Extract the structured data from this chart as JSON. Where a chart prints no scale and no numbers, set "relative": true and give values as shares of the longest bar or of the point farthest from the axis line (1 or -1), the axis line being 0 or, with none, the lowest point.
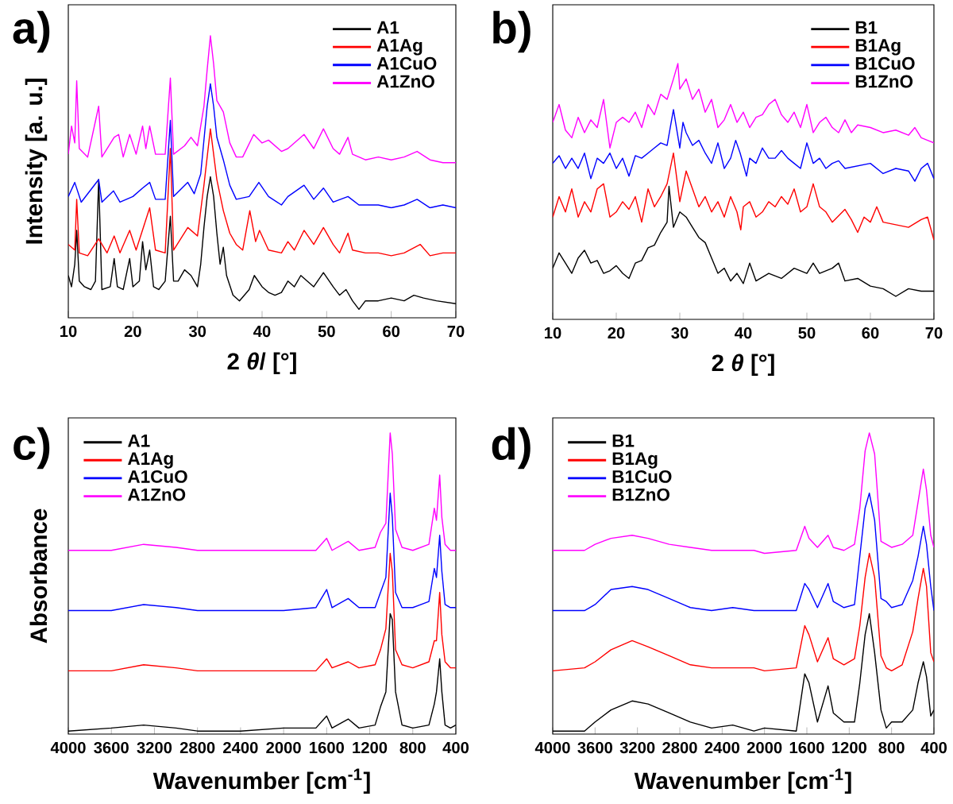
{
  "chart_data": [
    {
      "type": "line",
      "relative": true,
      "title": "a)",
      "xlabel": "2 *θ*/ [°]",
      "ylabel": "Intensity [a. u.]",
      "xlim": [
        10,
        70
      ],
      "xticks": [
        10,
        20,
        30,
        40,
        50,
        60,
        70
      ],
      "legend": "top right",
      "series": [
        {
          "name": "A1",
          "color": "#000000",
          "x": [
            10,
            10.5,
            11,
            11.3,
            11.7,
            12.5,
            13.5,
            14.2,
            14.7,
            15.2,
            16.5,
            17.1,
            17.6,
            18.5,
            19.5,
            20,
            21,
            21.5,
            22,
            22.6,
            23.2,
            24,
            25,
            25.8,
            26.3,
            27,
            28,
            29,
            30,
            30.5,
            31,
            31.5,
            32,
            32.5,
            33,
            33.5,
            34,
            34.5,
            35.5,
            36.5,
            38,
            38.8,
            40,
            41,
            42,
            43,
            44,
            45,
            46,
            47,
            48,
            49.5,
            51,
            52,
            53,
            54,
            55,
            56,
            58,
            60,
            62,
            63.5,
            65,
            67,
            70
          ],
          "values": [
            0.15,
            0.11,
            0.19,
            0.31,
            0.13,
            0.11,
            0.1,
            0.13,
            0.49,
            0.1,
            0.11,
            0.21,
            0.11,
            0.1,
            0.21,
            0.11,
            0.13,
            0.27,
            0.17,
            0.24,
            0.11,
            0.1,
            0.13,
            0.36,
            0.13,
            0.13,
            0.17,
            0.15,
            0.11,
            0.19,
            0.32,
            0.43,
            0.5,
            0.43,
            0.3,
            0.19,
            0.25,
            0.15,
            0.08,
            0.06,
            0.1,
            0.15,
            0.11,
            0.09,
            0.08,
            0.09,
            0.13,
            0.11,
            0.15,
            0.13,
            0.11,
            0.16,
            0.11,
            0.08,
            0.1,
            0.06,
            0.03,
            0.06,
            0.06,
            0.07,
            0.06,
            0.08,
            0.07,
            0.06,
            0.05
          ]
        },
        {
          "name": "A1Ag",
          "color": "#ff0000",
          "x": [
            10,
            11,
            11.3,
            11.7,
            13,
            14.7,
            16,
            17.1,
            18,
            19.5,
            20.5,
            22.6,
            23.5,
            25,
            25.8,
            26.3,
            28.5,
            30,
            31,
            32,
            33,
            34,
            35,
            36,
            37,
            38.1,
            39,
            39.6,
            41,
            43,
            44,
            45,
            46.5,
            48,
            49.5,
            51,
            52,
            53.3,
            54,
            56,
            58,
            60,
            62,
            64.5,
            66,
            68,
            70
          ],
          "values": [
            0.26,
            0.24,
            0.42,
            0.23,
            0.22,
            0.28,
            0.23,
            0.29,
            0.23,
            0.31,
            0.24,
            0.39,
            0.24,
            0.23,
            0.6,
            0.24,
            0.32,
            0.29,
            0.47,
            0.67,
            0.49,
            0.38,
            0.3,
            0.26,
            0.24,
            0.38,
            0.27,
            0.31,
            0.24,
            0.23,
            0.27,
            0.24,
            0.31,
            0.26,
            0.32,
            0.26,
            0.23,
            0.3,
            0.24,
            0.23,
            0.23,
            0.22,
            0.23,
            0.26,
            0.22,
            0.23,
            0.23
          ]
        },
        {
          "name": "A1CuO",
          "color": "#0000ff",
          "x": [
            10,
            11,
            12,
            14.7,
            15.2,
            17,
            18,
            20,
            21.5,
            22.6,
            23.5,
            25,
            25.8,
            26.3,
            28.5,
            29.5,
            30.5,
            31.5,
            32,
            32.5,
            33,
            34,
            35,
            36,
            38,
            39.5,
            41,
            43,
            44,
            46.5,
            48,
            49.5,
            51,
            53.3,
            55,
            58,
            60,
            62,
            64,
            66,
            68,
            70
          ],
          "values": [
            0.43,
            0.48,
            0.41,
            0.49,
            0.41,
            0.45,
            0.41,
            0.43,
            0.46,
            0.48,
            0.42,
            0.42,
            0.7,
            0.43,
            0.48,
            0.44,
            0.51,
            0.75,
            0.83,
            0.75,
            0.64,
            0.56,
            0.47,
            0.42,
            0.43,
            0.48,
            0.43,
            0.4,
            0.43,
            0.47,
            0.42,
            0.46,
            0.41,
            0.43,
            0.4,
            0.4,
            0.39,
            0.4,
            0.42,
            0.39,
            0.4,
            0.39
          ]
        },
        {
          "name": "A1ZnO",
          "color": "#ff00ff",
          "x": [
            10,
            10.5,
            11,
            11.3,
            11.7,
            13,
            14.7,
            15.2,
            17.1,
            17.8,
            18.5,
            19.5,
            20.5,
            21.5,
            22,
            22.6,
            23.5,
            25,
            25.8,
            26.3,
            28,
            29,
            30,
            31,
            31.5,
            32,
            32.5,
            33,
            34,
            35,
            36,
            37,
            38.7,
            40,
            41,
            43,
            44,
            46.5,
            48,
            49.5,
            51,
            52,
            53.3,
            54,
            56,
            58,
            60,
            62,
            64,
            66,
            68,
            70
          ],
          "values": [
            0.58,
            0.68,
            0.62,
            0.84,
            0.6,
            0.57,
            0.75,
            0.57,
            0.64,
            0.65,
            0.57,
            0.65,
            0.58,
            0.68,
            0.6,
            0.68,
            0.58,
            0.58,
            0.85,
            0.58,
            0.61,
            0.64,
            0.61,
            0.75,
            0.88,
            1.0,
            0.9,
            0.77,
            0.73,
            0.62,
            0.57,
            0.57,
            0.65,
            0.62,
            0.63,
            0.59,
            0.6,
            0.65,
            0.6,
            0.67,
            0.6,
            0.58,
            0.64,
            0.58,
            0.56,
            0.57,
            0.56,
            0.57,
            0.59,
            0.56,
            0.55,
            0.55
          ]
        }
      ]
    },
    {
      "type": "line",
      "relative": true,
      "title": "b)",
      "xlabel": "2 *θ* [°]",
      "xlim": [
        10,
        70
      ],
      "xticks": [
        10,
        20,
        30,
        40,
        50,
        60,
        70
      ],
      "legend": "top right",
      "series": [
        {
          "name": "B1",
          "color": "#000000",
          "x": [
            10,
            11,
            12,
            13,
            14,
            15,
            16,
            17,
            18,
            19,
            20,
            21,
            22,
            23,
            24,
            25,
            26,
            27,
            28,
            28.3,
            29,
            30,
            31,
            32,
            33,
            34,
            35,
            36,
            37,
            38,
            39,
            40,
            41,
            42,
            44,
            46,
            48,
            50,
            51,
            52,
            54,
            55,
            56,
            58,
            60,
            62,
            64,
            66,
            68,
            70
          ],
          "values": [
            0.2,
            0.26,
            0.22,
            0.18,
            0.24,
            0.27,
            0.22,
            0.23,
            0.18,
            0.19,
            0.21,
            0.18,
            0.16,
            0.22,
            0.23,
            0.28,
            0.29,
            0.34,
            0.38,
            0.52,
            0.36,
            0.42,
            0.4,
            0.36,
            0.32,
            0.3,
            0.24,
            0.18,
            0.2,
            0.15,
            0.18,
            0.14,
            0.22,
            0.15,
            0.18,
            0.16,
            0.2,
            0.18,
            0.22,
            0.18,
            0.2,
            0.22,
            0.15,
            0.16,
            0.13,
            0.12,
            0.09,
            0.12,
            0.11,
            0.11
          ]
        },
        {
          "name": "B1Ag",
          "color": "#ff0000",
          "x": [
            10,
            11,
            12,
            13,
            14,
            15,
            16,
            17,
            18,
            19,
            20,
            21,
            22,
            23,
            24,
            25,
            26,
            27,
            28,
            29,
            30,
            31,
            32,
            33,
            34,
            35,
            36,
            37,
            38,
            39,
            39.6,
            40,
            41,
            42,
            43,
            44,
            45,
            46,
            47,
            48,
            49,
            50,
            51,
            52,
            53,
            54,
            56,
            57,
            58,
            59,
            60,
            61,
            62,
            64,
            66,
            68,
            69,
            70
          ],
          "values": [
            0.4,
            0.48,
            0.42,
            0.51,
            0.4,
            0.46,
            0.42,
            0.51,
            0.53,
            0.4,
            0.42,
            0.46,
            0.43,
            0.48,
            0.38,
            0.51,
            0.44,
            0.48,
            0.53,
            0.65,
            0.46,
            0.58,
            0.51,
            0.44,
            0.48,
            0.42,
            0.46,
            0.4,
            0.48,
            0.42,
            0.35,
            0.44,
            0.46,
            0.4,
            0.42,
            0.46,
            0.44,
            0.48,
            0.45,
            0.51,
            0.42,
            0.44,
            0.53,
            0.44,
            0.42,
            0.38,
            0.43,
            0.39,
            0.34,
            0.4,
            0.38,
            0.44,
            0.38,
            0.37,
            0.36,
            0.39,
            0.4,
            0.31
          ]
        },
        {
          "name": "B1CuO",
          "color": "#0000ff",
          "x": [
            10,
            11,
            12,
            13,
            14,
            15,
            16,
            17,
            18,
            19,
            20,
            21,
            22,
            23,
            24,
            25,
            26,
            27,
            28,
            29,
            30,
            30.5,
            31,
            32,
            33,
            34,
            35,
            36,
            37,
            38,
            38.8,
            39.5,
            40.5,
            41,
            42,
            43,
            44,
            45,
            46,
            47,
            48,
            49,
            50,
            51,
            52,
            53,
            54,
            55,
            56,
            58,
            60,
            62,
            64,
            66,
            67,
            68,
            69,
            70
          ],
          "values": [
            0.61,
            0.64,
            0.59,
            0.63,
            0.59,
            0.65,
            0.55,
            0.63,
            0.61,
            0.65,
            0.59,
            0.63,
            0.56,
            0.64,
            0.63,
            0.65,
            0.67,
            0.69,
            0.68,
            0.82,
            0.67,
            0.77,
            0.73,
            0.68,
            0.7,
            0.65,
            0.61,
            0.69,
            0.59,
            0.63,
            0.7,
            0.65,
            0.56,
            0.63,
            0.61,
            0.67,
            0.63,
            0.63,
            0.66,
            0.63,
            0.61,
            0.59,
            0.69,
            0.61,
            0.63,
            0.59,
            0.61,
            0.62,
            0.59,
            0.6,
            0.61,
            0.57,
            0.59,
            0.58,
            0.54,
            0.59,
            0.61,
            0.55
          ]
        },
        {
          "name": "B1ZnO",
          "color": "#ff00ff",
          "x": [
            10,
            11,
            12,
            13,
            14,
            15,
            16,
            17,
            18,
            19,
            20,
            21,
            22,
            23,
            24,
            25,
            26,
            27,
            28,
            29,
            29.7,
            30,
            31,
            32,
            33,
            34,
            35,
            36,
            37,
            38,
            39,
            40,
            41,
            42,
            43,
            44,
            45,
            46,
            47,
            48,
            49,
            50,
            51,
            52,
            53,
            54,
            55,
            56,
            57,
            58,
            60,
            62,
            64,
            66,
            67,
            68,
            69,
            70
          ],
          "values": [
            0.77,
            0.84,
            0.74,
            0.71,
            0.79,
            0.73,
            0.78,
            0.75,
            0.86,
            0.67,
            0.77,
            0.79,
            0.77,
            0.81,
            0.75,
            0.84,
            0.8,
            0.88,
            0.86,
            0.94,
            1.0,
            0.9,
            0.94,
            0.86,
            0.9,
            0.81,
            0.86,
            0.75,
            0.78,
            0.84,
            0.77,
            0.81,
            0.75,
            0.79,
            0.8,
            0.84,
            0.86,
            0.8,
            0.77,
            0.81,
            0.75,
            0.84,
            0.73,
            0.77,
            0.79,
            0.75,
            0.73,
            0.78,
            0.73,
            0.76,
            0.75,
            0.73,
            0.74,
            0.72,
            0.75,
            0.71,
            0.7,
            0.69
          ]
        }
      ]
    },
    {
      "type": "line",
      "relative": true,
      "title": "c)",
      "xlabel": "Wavenumber [cm$^{-1}$]",
      "ylabel": "Absorbance",
      "xlim": [
        4000,
        400
      ],
      "xticks": [
        4000,
        3600,
        3200,
        2800,
        2400,
        2000,
        1600,
        1200,
        800,
        400
      ],
      "legend": "top left",
      "series": [
        {
          "name": "A1",
          "color": "#000000",
          "x": [
            4000,
            3600,
            3300,
            3000,
            2800,
            2400,
            2000,
            1700,
            1600,
            1550,
            1400,
            1300,
            1150,
            1100,
            1050,
            1010,
            990,
            960,
            900,
            800,
            650,
            600,
            580,
            550,
            530,
            500,
            450,
            400
          ],
          "values": [
            0.01,
            0.02,
            0.03,
            0.02,
            0.01,
            0.01,
            0.02,
            0.02,
            0.06,
            0.02,
            0.05,
            0.02,
            0.03,
            0.09,
            0.14,
            0.4,
            0.38,
            0.14,
            0.03,
            0.02,
            0.03,
            0.1,
            0.14,
            0.25,
            0.14,
            0.03,
            0.02,
            0.03
          ]
        },
        {
          "name": "A1Ag",
          "color": "#ff0000",
          "x": [
            4000,
            3600,
            3300,
            3000,
            2800,
            2400,
            2000,
            1700,
            1600,
            1550,
            1400,
            1300,
            1150,
            1100,
            1050,
            1010,
            990,
            960,
            900,
            800,
            650,
            600,
            580,
            550,
            530,
            500,
            450,
            400
          ],
          "values": [
            0.21,
            0.21,
            0.23,
            0.22,
            0.21,
            0.21,
            0.21,
            0.21,
            0.25,
            0.22,
            0.24,
            0.22,
            0.23,
            0.28,
            0.35,
            0.6,
            0.54,
            0.28,
            0.23,
            0.22,
            0.24,
            0.31,
            0.31,
            0.47,
            0.33,
            0.24,
            0.22,
            0.22
          ]
        },
        {
          "name": "A1CuO",
          "color": "#0000ff",
          "x": [
            4000,
            3600,
            3300,
            3000,
            2800,
            2400,
            2000,
            1700,
            1600,
            1550,
            1400,
            1300,
            1150,
            1100,
            1050,
            1010,
            990,
            960,
            900,
            800,
            650,
            600,
            580,
            550,
            530,
            500,
            450,
            400
          ],
          "values": [
            0.41,
            0.41,
            0.43,
            0.42,
            0.41,
            0.41,
            0.41,
            0.42,
            0.48,
            0.42,
            0.45,
            0.42,
            0.42,
            0.47,
            0.52,
            0.8,
            0.72,
            0.47,
            0.42,
            0.42,
            0.44,
            0.55,
            0.52,
            0.66,
            0.54,
            0.43,
            0.42,
            0.42
          ]
        },
        {
          "name": "A1ZnO",
          "color": "#ff00ff",
          "x": [
            4000,
            3600,
            3300,
            3000,
            2800,
            2400,
            2000,
            1700,
            1600,
            1550,
            1400,
            1300,
            1150,
            1100,
            1050,
            1010,
            990,
            960,
            900,
            800,
            650,
            600,
            580,
            550,
            530,
            500,
            450,
            400
          ],
          "values": [
            0.61,
            0.61,
            0.63,
            0.62,
            0.61,
            0.61,
            0.61,
            0.61,
            0.65,
            0.61,
            0.64,
            0.61,
            0.62,
            0.67,
            0.7,
            1.0,
            0.93,
            0.68,
            0.62,
            0.61,
            0.63,
            0.75,
            0.71,
            0.86,
            0.72,
            0.63,
            0.61,
            0.61
          ]
        }
      ]
    },
    {
      "type": "line",
      "relative": true,
      "title": "d)",
      "xlabel": "Wavenumber [cm$^{-1}$]",
      "xlim": [
        4000,
        400
      ],
      "xticks": [
        4000,
        3600,
        3200,
        2800,
        2400,
        2000,
        1600,
        1200,
        800,
        400
      ],
      "legend": "top left",
      "series": [
        {
          "name": "B1",
          "color": "#000000",
          "x": [
            4000,
            3700,
            3600,
            3450,
            3250,
            3100,
            2900,
            2700,
            2500,
            2300,
            2100,
            2000,
            1700,
            1620,
            1580,
            1500,
            1400,
            1350,
            1250,
            1150,
            1100,
            1050,
            1010,
            960,
            900,
            850,
            800,
            700,
            600,
            550,
            500,
            470,
            430,
            400
          ],
          "values": [
            0.01,
            0.01,
            0.04,
            0.08,
            0.11,
            0.1,
            0.07,
            0.04,
            0.02,
            0.03,
            0.01,
            0.02,
            0.01,
            0.2,
            0.17,
            0.04,
            0.16,
            0.07,
            0.04,
            0.04,
            0.17,
            0.33,
            0.4,
            0.27,
            0.08,
            0.02,
            0.04,
            0.04,
            0.08,
            0.17,
            0.24,
            0.19,
            0.06,
            0.08
          ]
        },
        {
          "name": "B1Ag",
          "color": "#ff0000",
          "x": [
            4000,
            3700,
            3600,
            3450,
            3250,
            3100,
            2900,
            2700,
            2500,
            2300,
            2100,
            2000,
            1700,
            1620,
            1580,
            1500,
            1400,
            1350,
            1250,
            1150,
            1100,
            1050,
            1010,
            960,
            900,
            850,
            800,
            700,
            600,
            550,
            500,
            470,
            430,
            400
          ],
          "values": [
            0.21,
            0.22,
            0.24,
            0.28,
            0.31,
            0.29,
            0.26,
            0.23,
            0.22,
            0.22,
            0.22,
            0.21,
            0.22,
            0.36,
            0.33,
            0.24,
            0.32,
            0.25,
            0.23,
            0.25,
            0.36,
            0.52,
            0.6,
            0.52,
            0.26,
            0.22,
            0.21,
            0.23,
            0.34,
            0.45,
            0.55,
            0.49,
            0.27,
            0.24
          ]
        },
        {
          "name": "B1CuO",
          "color": "#0000ff",
          "x": [
            4000,
            3700,
            3600,
            3450,
            3250,
            3100,
            2900,
            2700,
            2500,
            2300,
            2100,
            2000,
            1700,
            1620,
            1580,
            1500,
            1400,
            1350,
            1250,
            1150,
            1100,
            1050,
            1010,
            960,
            900,
            850,
            800,
            700,
            600,
            550,
            500,
            470,
            430,
            400
          ],
          "values": [
            0.41,
            0.41,
            0.43,
            0.48,
            0.49,
            0.48,
            0.45,
            0.42,
            0.41,
            0.42,
            0.41,
            0.41,
            0.41,
            0.5,
            0.48,
            0.42,
            0.5,
            0.44,
            0.42,
            0.43,
            0.59,
            0.75,
            0.8,
            0.71,
            0.45,
            0.44,
            0.42,
            0.43,
            0.51,
            0.59,
            0.69,
            0.63,
            0.49,
            0.41
          ]
        },
        {
          "name": "B1ZnO",
          "color": "#ff00ff",
          "x": [
            4000,
            3700,
            3600,
            3450,
            3250,
            3100,
            2900,
            2700,
            2500,
            2300,
            2100,
            2000,
            1700,
            1620,
            1580,
            1500,
            1400,
            1350,
            1250,
            1150,
            1100,
            1050,
            1010,
            960,
            900,
            850,
            800,
            700,
            600,
            550,
            500,
            470,
            430,
            400
          ],
          "values": [
            0.61,
            0.61,
            0.63,
            0.65,
            0.66,
            0.65,
            0.63,
            0.62,
            0.61,
            0.61,
            0.61,
            0.6,
            0.61,
            0.69,
            0.65,
            0.62,
            0.66,
            0.62,
            0.61,
            0.63,
            0.75,
            0.94,
            1.0,
            0.93,
            0.64,
            0.63,
            0.62,
            0.63,
            0.66,
            0.77,
            0.88,
            0.81,
            0.66,
            0.62
          ]
        }
      ]
    }
  ]
}
